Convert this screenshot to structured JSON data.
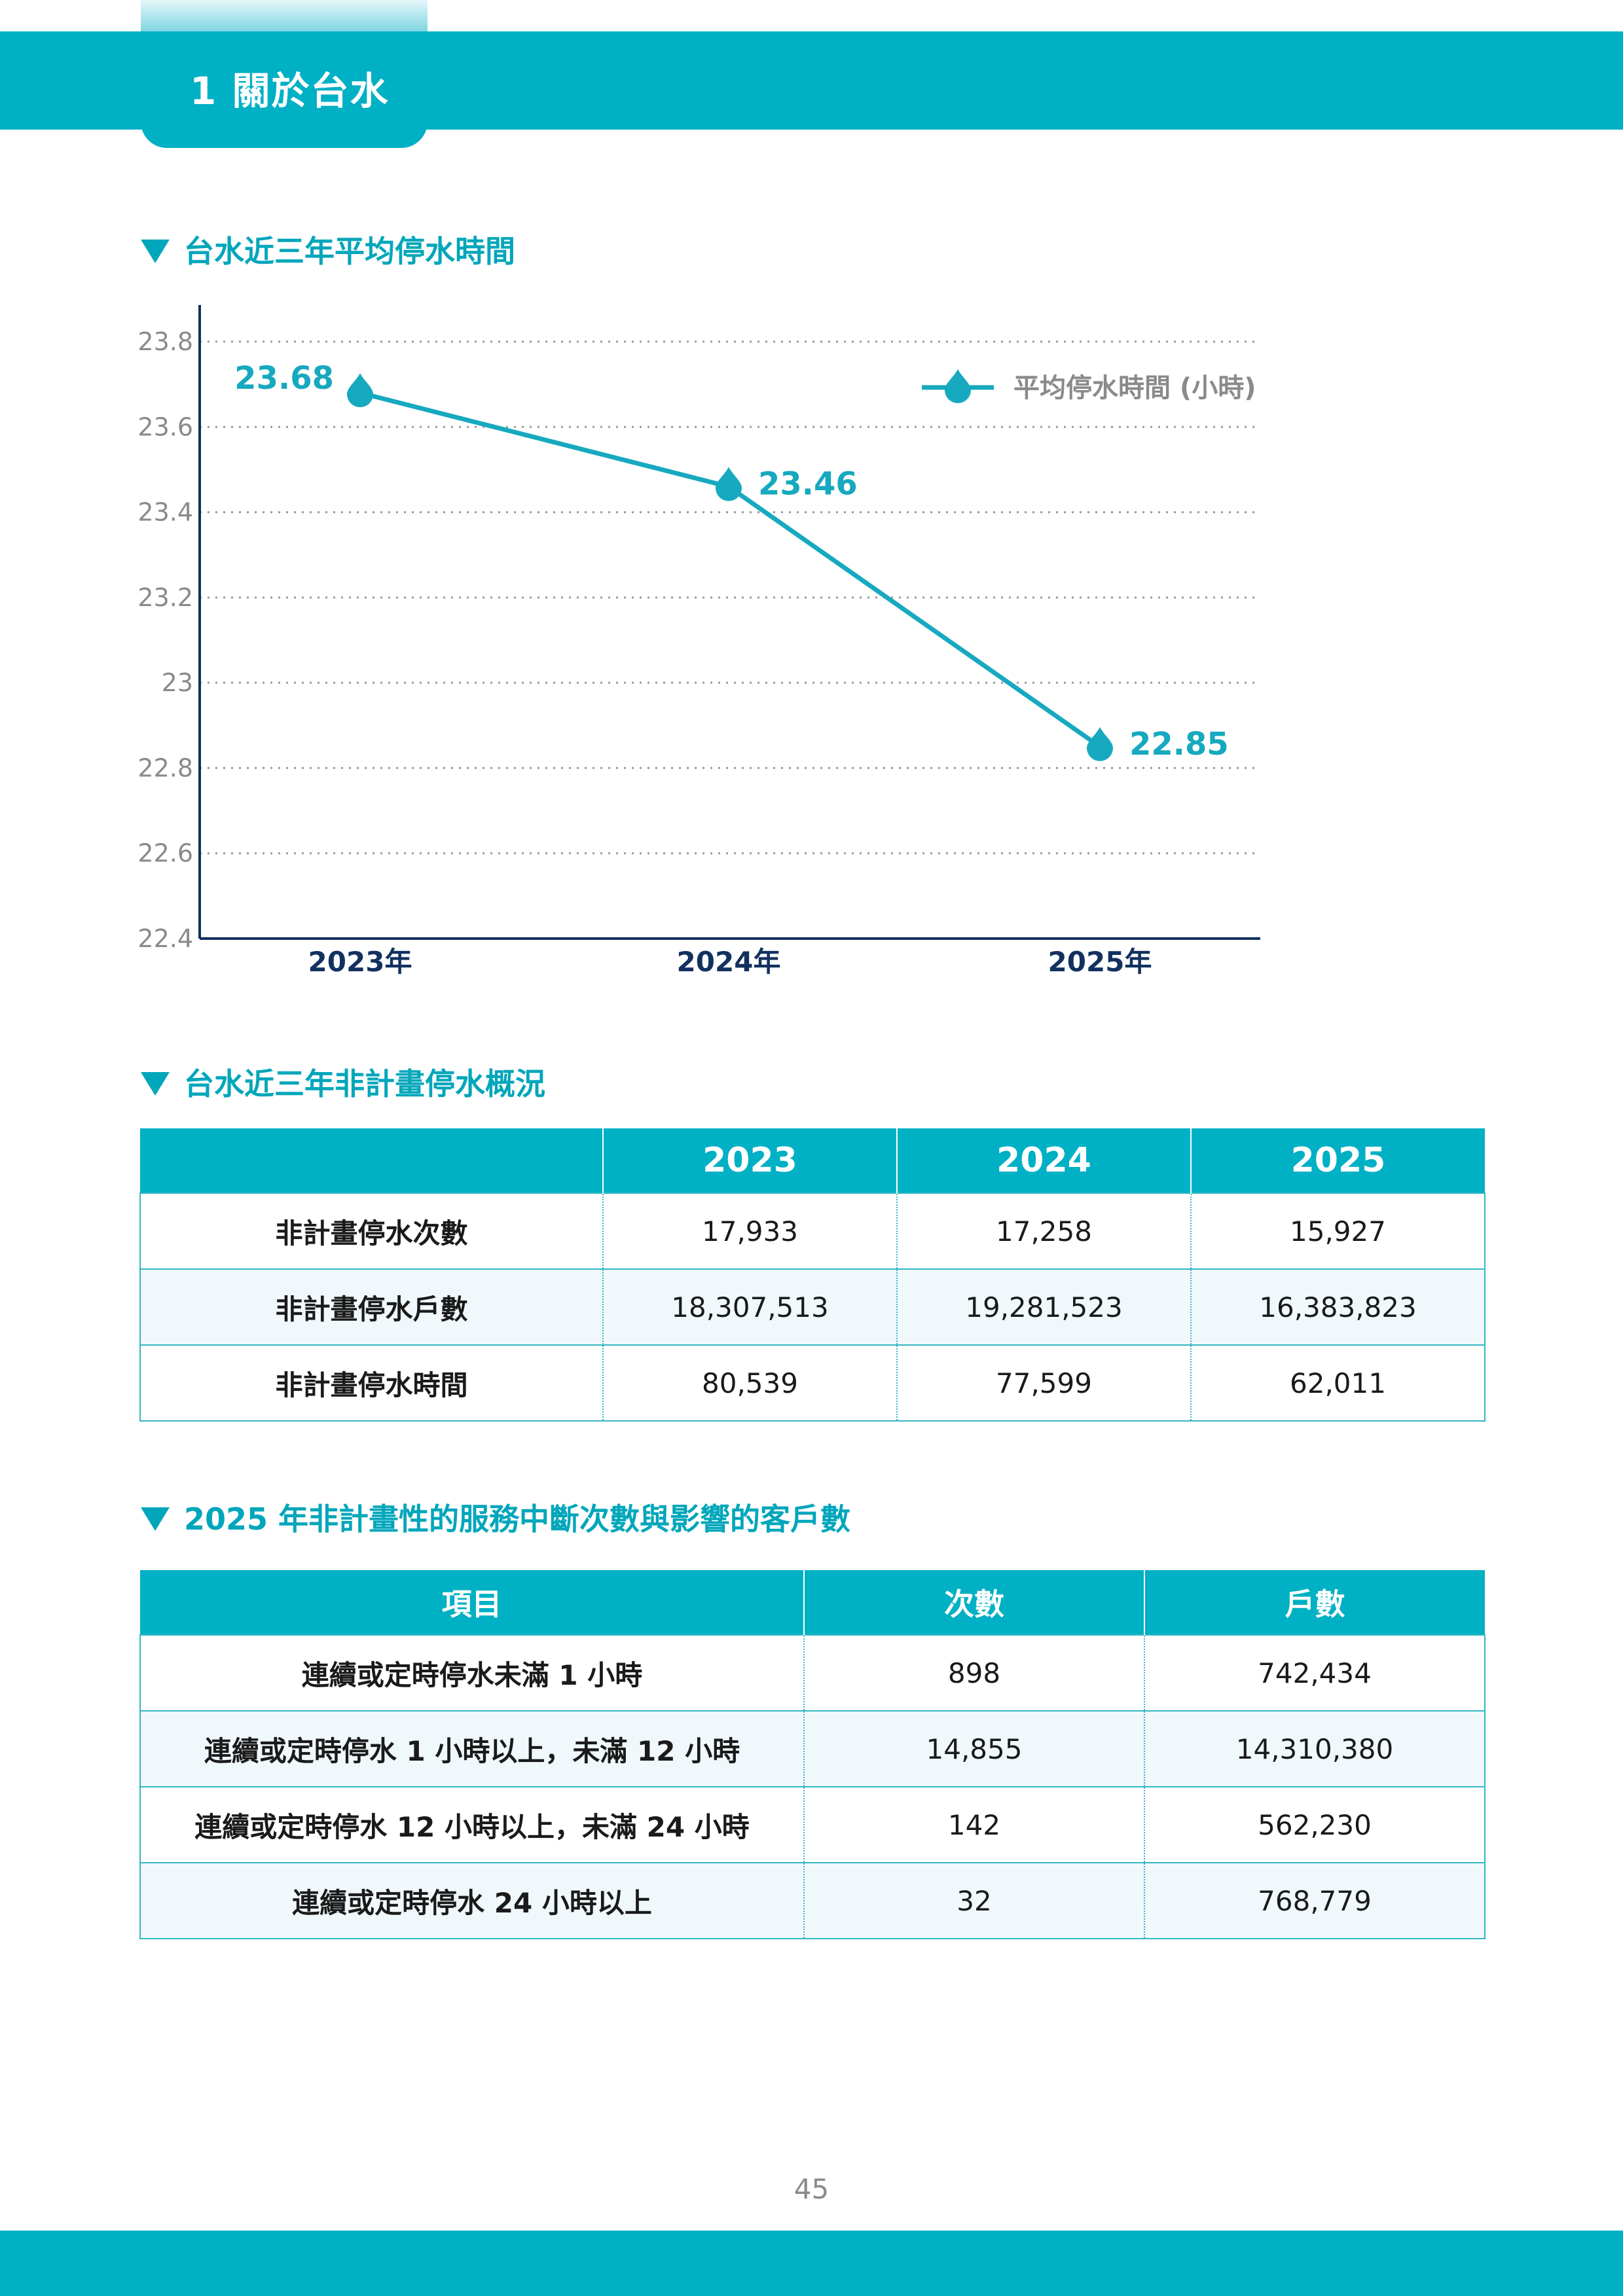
{
  "header": {
    "title": "1 關於台水"
  },
  "section1": {
    "title": "台水近三年平均停水時間"
  },
  "chart_data": {
    "type": "line",
    "title": "台水近三年平均停水時間",
    "categories": [
      "2023年",
      "2024年",
      "2025年"
    ],
    "series": [
      {
        "name": "平均停水時間 (小時)",
        "values": [
          23.68,
          23.46,
          22.85
        ],
        "labels": [
          "23.68",
          "23.46",
          "22.85"
        ]
      }
    ],
    "ylim": [
      22.4,
      23.8
    ],
    "yticks": [
      23.8,
      23.6,
      23.4,
      23.2,
      23,
      22.8,
      22.6,
      22.4
    ],
    "ytick_labels": [
      "23.8",
      "23.6",
      "23.4",
      "23.2",
      "23",
      "22.8",
      "22.6",
      "22.4"
    ],
    "grid": true,
    "legend": "top-right",
    "line_color": "#16a9bf",
    "axis_color": "#12315e"
  },
  "section2": {
    "title": "台水近三年非計畫停水概況",
    "headers": [
      "",
      "2023",
      "2024",
      "2025"
    ],
    "rows": [
      [
        "非計畫停水次數",
        "17,933",
        "17,258",
        "15,927"
      ],
      [
        "非計畫停水戶數",
        "18,307,513",
        "19,281,523",
        "16,383,823"
      ],
      [
        "非計畫停水時間",
        "80,539",
        "77,599",
        "62,011"
      ]
    ]
  },
  "section3": {
    "title": "2025 年非計畫性的服務中斷次數與影響的客戶數",
    "headers": [
      "項目",
      "次數",
      "戶數"
    ],
    "rows": [
      [
        "連續或定時停水未滿 1 小時",
        "898",
        "742,434"
      ],
      [
        "連續或定時停水 1 小時以上，未滿 12 小時",
        "14,855",
        "14,310,380"
      ],
      [
        "連續或定時停水 12 小時以上，未滿 24 小時",
        "142",
        "562,230"
      ],
      [
        "連續或定時停水 24 小時以上",
        "32",
        "768,779"
      ]
    ]
  },
  "footer": {
    "page_number": "45"
  },
  "colors": {
    "brand": "#00b0c4",
    "heading": "#00a6ba",
    "row_alt": "#f0f8fb"
  }
}
